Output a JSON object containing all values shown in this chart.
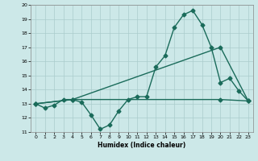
{
  "xlabel": "Humidex (Indice chaleur)",
  "ylabel": "",
  "xlim": [
    -0.5,
    23.5
  ],
  "ylim": [
    11,
    20
  ],
  "xticks": [
    0,
    1,
    2,
    3,
    4,
    5,
    6,
    7,
    8,
    9,
    10,
    11,
    12,
    13,
    14,
    15,
    16,
    17,
    18,
    19,
    20,
    21,
    22,
    23
  ],
  "yticks": [
    11,
    12,
    13,
    14,
    15,
    16,
    17,
    18,
    19,
    20
  ],
  "bg_color": "#cce8e8",
  "grid_color": "#aacccc",
  "line_color": "#1a6b5a",
  "line1_x": [
    0,
    1,
    2,
    3,
    4,
    5,
    6,
    7,
    8,
    9,
    10,
    11,
    12,
    13,
    14,
    15,
    16,
    17,
    18,
    19,
    20,
    21,
    22,
    23
  ],
  "line1_y": [
    13.0,
    12.7,
    12.9,
    13.3,
    13.3,
    13.1,
    12.2,
    11.2,
    11.5,
    12.5,
    13.3,
    13.5,
    13.5,
    15.6,
    16.4,
    18.4,
    19.3,
    19.6,
    18.6,
    17.0,
    14.5,
    14.8,
    13.9,
    13.2
  ],
  "line2_x": [
    0,
    4,
    20,
    23
  ],
  "line2_y": [
    13.0,
    13.3,
    17.0,
    13.2
  ],
  "line3_x": [
    0,
    4,
    20,
    23
  ],
  "line3_y": [
    13.0,
    13.3,
    13.3,
    13.2
  ],
  "marker": "D",
  "markersize": 2.5,
  "linewidth": 1.0
}
